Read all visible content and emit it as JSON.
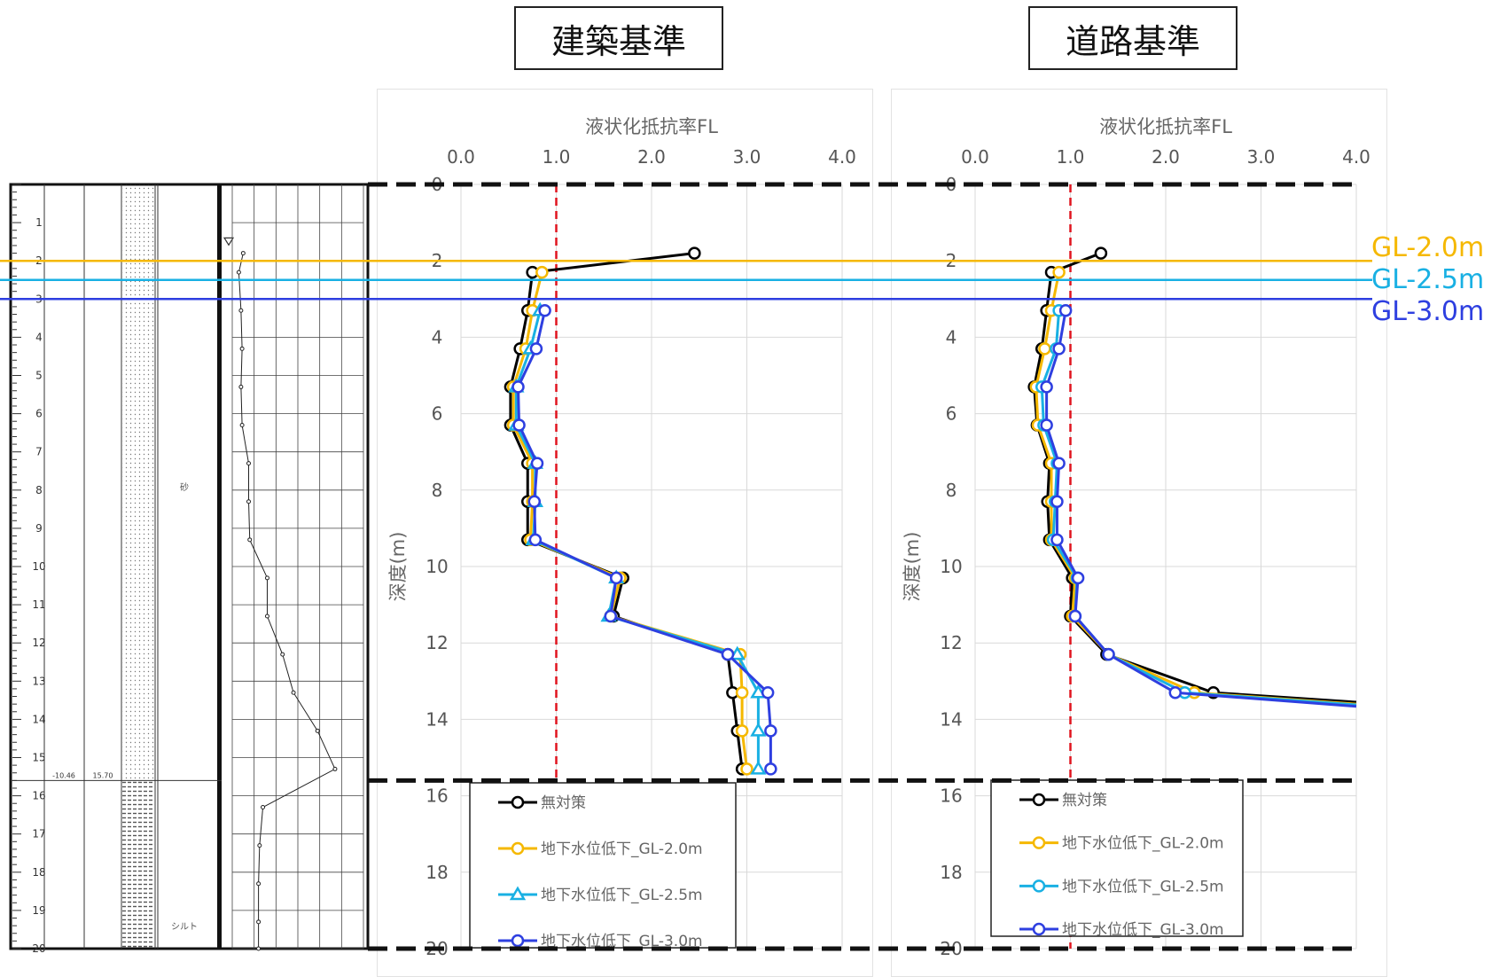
{
  "titles": {
    "left": "建築基準",
    "right": "道路基準"
  },
  "gl_labels": [
    {
      "text": "GL-2.0m",
      "depth": 2.0,
      "color": "#F5B800"
    },
    {
      "text": "GL-2.5m",
      "depth": 2.5,
      "color": "#19B0E3"
    },
    {
      "text": "GL-3.0m",
      "depth": 3.0,
      "color": "#2E3FE0"
    }
  ],
  "boring_log": {
    "depth_ticks": [
      "1",
      "2",
      "3",
      "4",
      "5",
      "6",
      "7",
      "8",
      "9",
      "10",
      "11",
      "12",
      "13",
      "14",
      "15",
      "16",
      "17",
      "18",
      "19",
      "20"
    ],
    "layer_boundary_depth": 15.6,
    "layer_texts": {
      "elevation": "-10.46",
      "thickness": "15.70",
      "upper_soil": "砂",
      "lower_soil": "シルト"
    },
    "n_value_profile": [
      [
        1.8,
        1.0
      ],
      [
        2.3,
        0.6
      ],
      [
        3.3,
        0.8
      ],
      [
        4.3,
        0.9
      ],
      [
        5.3,
        0.8
      ],
      [
        6.3,
        0.9
      ],
      [
        7.3,
        1.5
      ],
      [
        8.3,
        1.5
      ],
      [
        9.3,
        1.6
      ],
      [
        10.3,
        3.2
      ],
      [
        11.3,
        3.2
      ],
      [
        12.3,
        4.6
      ],
      [
        13.3,
        5.6
      ],
      [
        14.3,
        7.8
      ],
      [
        15.3,
        9.4
      ],
      [
        16.3,
        2.8
      ],
      [
        17.3,
        2.5
      ],
      [
        18.3,
        2.4
      ],
      [
        19.3,
        2.4
      ],
      [
        20.0,
        2.4
      ]
    ]
  },
  "chart_data": [
    {
      "type": "line",
      "title": "建築基準",
      "xlabel": "液状化抵抗率FL",
      "ylabel": "深度(m)",
      "xlim": [
        0.0,
        4.0
      ],
      "ylim": [
        20,
        0
      ],
      "xticks": [
        "0.0",
        "1.0",
        "2.0",
        "3.0",
        "4.0"
      ],
      "yticks": [
        "0",
        "2",
        "4",
        "6",
        "8",
        "10",
        "12",
        "14",
        "16",
        "18",
        "20"
      ],
      "reference_line_x": 1.0,
      "legend_position": "bottom",
      "series": [
        {
          "name": "無対策",
          "color": "#000000",
          "marker": "circle",
          "points": [
            [
              2.45,
              1.8
            ],
            [
              0.75,
              2.3
            ],
            [
              0.7,
              3.3
            ],
            [
              0.62,
              4.3
            ],
            [
              0.52,
              5.3
            ],
            [
              0.52,
              6.3
            ],
            [
              0.7,
              7.3
            ],
            [
              0.7,
              8.3
            ],
            [
              0.7,
              9.3
            ],
            [
              1.7,
              10.3
            ],
            [
              1.6,
              11.3
            ],
            [
              2.8,
              12.3
            ],
            [
              2.85,
              13.3
            ],
            [
              2.9,
              14.3
            ],
            [
              2.95,
              15.3
            ]
          ]
        },
        {
          "name": "地下水位低下_GL-2.0m",
          "color": "#F5B800",
          "marker": "circle",
          "points": [
            [
              0.85,
              2.3
            ],
            [
              0.75,
              3.3
            ],
            [
              0.68,
              4.3
            ],
            [
              0.55,
              5.3
            ],
            [
              0.55,
              6.3
            ],
            [
              0.75,
              7.3
            ],
            [
              0.75,
              8.3
            ],
            [
              0.73,
              9.3
            ],
            [
              1.67,
              10.3
            ],
            [
              1.57,
              11.3
            ],
            [
              2.93,
              12.3
            ],
            [
              2.95,
              13.3
            ],
            [
              2.95,
              14.3
            ],
            [
              3.0,
              15.3
            ]
          ]
        },
        {
          "name": "地下水位低下_GL-2.5m",
          "color": "#19B0E3",
          "marker": "triangle",
          "points": [
            [
              0.83,
              3.3
            ],
            [
              0.73,
              4.3
            ],
            [
              0.58,
              5.3
            ],
            [
              0.58,
              6.3
            ],
            [
              0.78,
              7.3
            ],
            [
              0.78,
              8.3
            ],
            [
              0.76,
              9.3
            ],
            [
              1.63,
              10.3
            ],
            [
              1.55,
              11.3
            ],
            [
              2.9,
              12.3
            ],
            [
              3.12,
              13.3
            ],
            [
              3.12,
              14.3
            ],
            [
              3.12,
              15.3
            ]
          ]
        },
        {
          "name": "地下水位低下_GL-3.0m",
          "color": "#2E3FE0",
          "marker": "circle",
          "points": [
            [
              0.88,
              3.3
            ],
            [
              0.79,
              4.3
            ],
            [
              0.6,
              5.3
            ],
            [
              0.61,
              6.3
            ],
            [
              0.8,
              7.3
            ],
            [
              0.77,
              8.3
            ],
            [
              0.78,
              9.3
            ],
            [
              1.63,
              10.3
            ],
            [
              1.57,
              11.3
            ],
            [
              2.8,
              12.3
            ],
            [
              3.22,
              13.3
            ],
            [
              3.25,
              14.3
            ],
            [
              3.25,
              15.3
            ]
          ]
        }
      ]
    },
    {
      "type": "line",
      "title": "道路基準",
      "xlabel": "液状化抵抗率FL",
      "ylabel": "深度(m)",
      "xlim": [
        0.0,
        4.0
      ],
      "ylim": [
        20,
        0
      ],
      "xticks": [
        "0.0",
        "1.0",
        "2.0",
        "3.0",
        "4.0"
      ],
      "yticks": [
        "0",
        "2",
        "4",
        "6",
        "8",
        "10",
        "12",
        "14",
        "16",
        "18",
        "20"
      ],
      "reference_line_x": 1.0,
      "legend_position": "bottom",
      "series": [
        {
          "name": "無対策",
          "color": "#000000",
          "marker": "circle",
          "points": [
            [
              1.32,
              1.8
            ],
            [
              0.8,
              2.3
            ],
            [
              0.75,
              3.3
            ],
            [
              0.7,
              4.3
            ],
            [
              0.62,
              5.3
            ],
            [
              0.65,
              6.3
            ],
            [
              0.78,
              7.3
            ],
            [
              0.76,
              8.3
            ],
            [
              0.78,
              9.3
            ],
            [
              1.02,
              10.3
            ],
            [
              1.0,
              11.3
            ],
            [
              1.38,
              12.3
            ],
            [
              2.5,
              13.3
            ],
            [
              4.0,
              13.55
            ]
          ]
        },
        {
          "name": "地下水位低下_GL-2.0m",
          "color": "#F5B800",
          "marker": "circle",
          "points": [
            [
              0.88,
              2.3
            ],
            [
              0.8,
              3.3
            ],
            [
              0.73,
              4.3
            ],
            [
              0.64,
              5.3
            ],
            [
              0.66,
              6.3
            ],
            [
              0.8,
              7.3
            ],
            [
              0.8,
              8.3
            ],
            [
              0.8,
              9.3
            ],
            [
              1.05,
              10.3
            ],
            [
              1.02,
              11.3
            ],
            [
              1.4,
              12.3
            ],
            [
              2.3,
              13.3
            ],
            [
              4.0,
              13.6
            ]
          ]
        },
        {
          "name": "地下水位低下_GL-2.5m",
          "color": "#19B0E3",
          "marker": "circle",
          "points": [
            [
              0.88,
              3.3
            ],
            [
              0.85,
              4.3
            ],
            [
              0.7,
              5.3
            ],
            [
              0.72,
              6.3
            ],
            [
              0.86,
              7.3
            ],
            [
              0.84,
              8.3
            ],
            [
              0.82,
              9.3
            ],
            [
              1.07,
              10.3
            ],
            [
              1.05,
              11.3
            ],
            [
              1.4,
              12.3
            ],
            [
              2.2,
              13.3
            ],
            [
              4.0,
              13.62
            ]
          ]
        },
        {
          "name": "地下水位低下_GL-3.0m",
          "color": "#2E3FE0",
          "marker": "circle",
          "points": [
            [
              0.95,
              3.3
            ],
            [
              0.88,
              4.3
            ],
            [
              0.75,
              5.3
            ],
            [
              0.75,
              6.3
            ],
            [
              0.88,
              7.3
            ],
            [
              0.86,
              8.3
            ],
            [
              0.86,
              9.3
            ],
            [
              1.08,
              10.3
            ],
            [
              1.05,
              11.3
            ],
            [
              1.4,
              12.3
            ],
            [
              2.1,
              13.3
            ],
            [
              4.0,
              13.66
            ]
          ]
        }
      ]
    }
  ]
}
